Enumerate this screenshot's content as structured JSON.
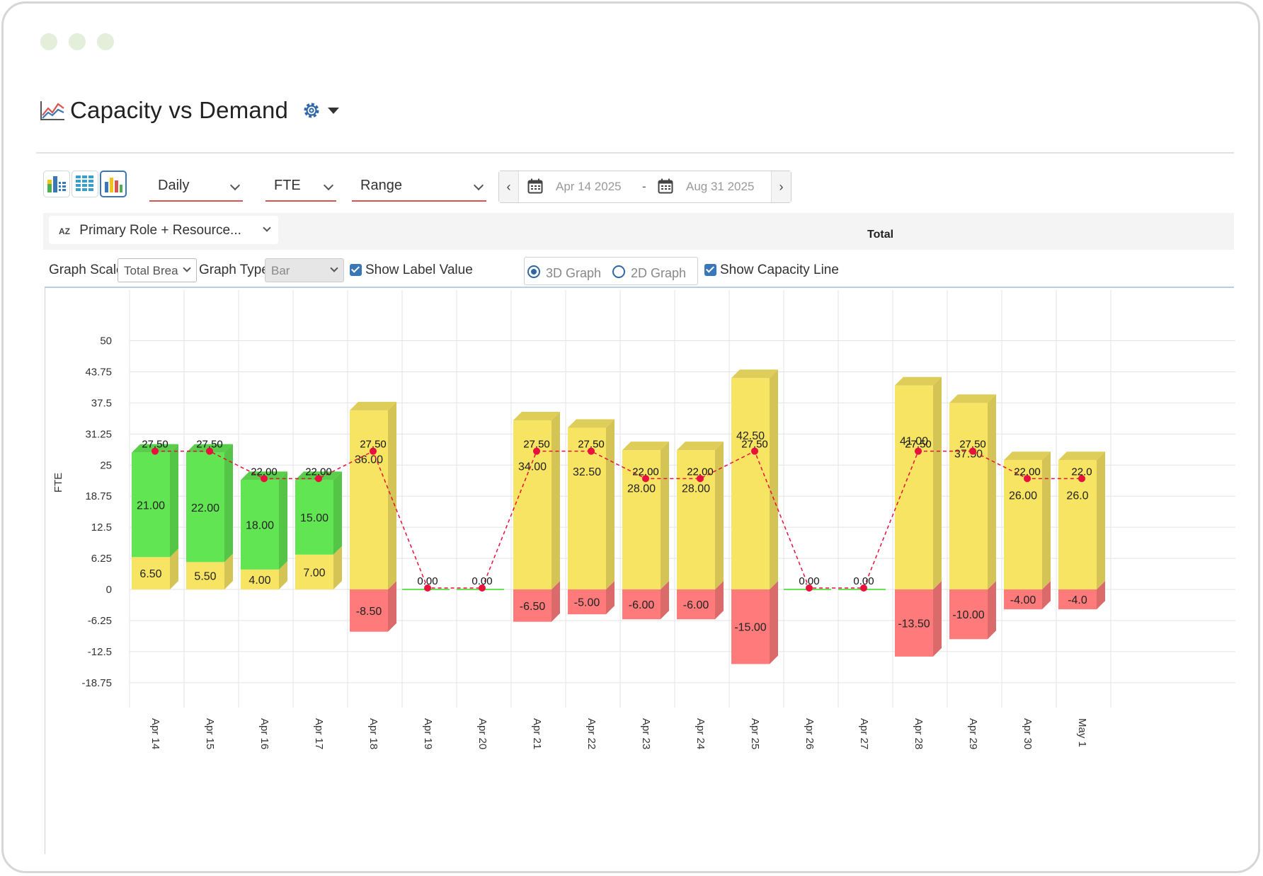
{
  "window": {
    "dots": [
      "#e3eedb",
      "#e3eedb",
      "#e3eedb"
    ]
  },
  "header": {
    "title": "Capacity vs Demand"
  },
  "toolbar": {
    "period": "Daily",
    "unit": "FTE",
    "range_mode": "Range",
    "start_date": "Apr 14 2025",
    "separator": "-",
    "end_date": "Aug 31 2025"
  },
  "grouping": {
    "selected": "Primary Role + Resource...",
    "column_header": "Total"
  },
  "options": {
    "graph_scale_label": "Graph Scale",
    "graph_scale_value": "Total Brea",
    "graph_type_label": "Graph Type",
    "graph_type_value": "Bar",
    "show_label_value": "Show Label Value",
    "graph_3d": "3D Graph",
    "graph_2d": "2D Graph",
    "show_capacity_line": "Show Capacity Line"
  },
  "colors": {
    "allocated": "#f7e463",
    "available": "#62e552",
    "over": "#ff7b7b",
    "capacity_line": "#e8103c"
  },
  "chart_data": {
    "type": "bar",
    "ylabel": "FTE",
    "ylim": [
      -18.75,
      50
    ],
    "yticks": [
      "50",
      "43.75",
      "37.5",
      "31.25",
      "25",
      "18.75",
      "12.5",
      "6.25",
      "0",
      "-6.25",
      "-12.5",
      "-18.75"
    ],
    "categories": [
      "Apr 14",
      "Apr 15",
      "Apr 16",
      "Apr 17",
      "Apr 18",
      "Apr 19",
      "Apr 20",
      "Apr 21",
      "Apr 22",
      "Apr 23",
      "Apr 24",
      "Apr 25",
      "Apr 26",
      "Apr 27",
      "Apr 28",
      "Apr 29",
      "Apr 30",
      "May 1"
    ],
    "series": [
      {
        "values": [
          6.5,
          5.5,
          4.0,
          7.0,
          36.0,
          0,
          0,
          34.0,
          32.5,
          28.0,
          28.0,
          42.5,
          0,
          0,
          41.0,
          37.5,
          26.0,
          26.0
        ],
        "labels": [
          "6.50",
          "5.50",
          "4.00",
          "7.00",
          "36.00",
          "",
          "",
          "34.00",
          "32.50",
          "28.00",
          "28.00",
          "42.50",
          "",
          "",
          "41.00",
          "37.50",
          "26.00",
          "26.0"
        ]
      },
      {
        "values": [
          21.0,
          22.0,
          18.0,
          15.0,
          0,
          0,
          0,
          0,
          0,
          0,
          0,
          0,
          0,
          0,
          0,
          0,
          0,
          0
        ],
        "labels": [
          "21.00",
          "22.00",
          "18.00",
          "15.00",
          "",
          "",
          "",
          "",
          "",
          "",
          "",
          "",
          "",
          "",
          "",
          "",
          "",
          ""
        ]
      },
      {
        "values": [
          0,
          0,
          0,
          0,
          -8.5,
          0,
          0,
          -6.5,
          -5.0,
          -6.0,
          -6.0,
          -15.0,
          0,
          0,
          -13.5,
          -10.0,
          -4.0,
          -4.0
        ],
        "labels": [
          "",
          "",
          "",
          "",
          "-8.50",
          "",
          "",
          "-6.50",
          "-5.00",
          "-6.00",
          "-6.00",
          "-15.00",
          "",
          "",
          "-13.50",
          "-10.00",
          "-4.00",
          "-4.0"
        ]
      },
      {
        "values": [
          27.5,
          27.5,
          22.0,
          22.0,
          27.5,
          0.0,
          0.0,
          27.5,
          27.5,
          22.0,
          22.0,
          27.5,
          0.0,
          0.0,
          27.5,
          27.5,
          22.0,
          22.0
        ],
        "labels": [
          "27.50",
          "27.50",
          "22.00",
          "22.00",
          "27.50",
          "0.00",
          "0.00",
          "27.50",
          "27.50",
          "22.00",
          "22.00",
          "27.50",
          "0.00",
          "0.00",
          "27.50",
          "27.50",
          "22.00",
          "22.0"
        ]
      }
    ]
  }
}
